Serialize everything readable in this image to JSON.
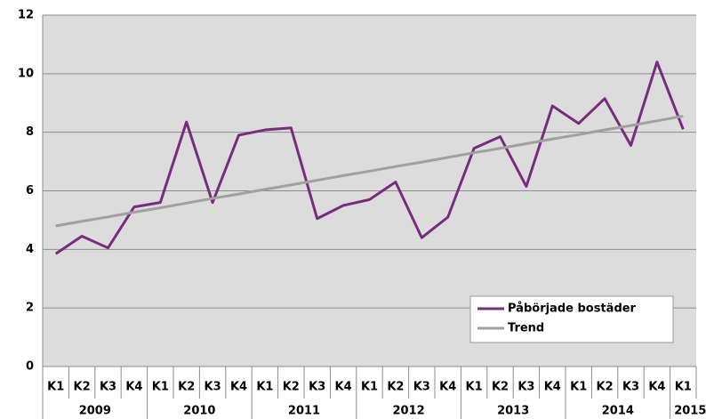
{
  "chart_data": {
    "type": "line",
    "categories": [
      [
        "2009",
        "K1"
      ],
      [
        "2009",
        "K2"
      ],
      [
        "2009",
        "K3"
      ],
      [
        "2009",
        "K4"
      ],
      [
        "2010",
        "K1"
      ],
      [
        "2010",
        "K2"
      ],
      [
        "2010",
        "K3"
      ],
      [
        "2010",
        "K4"
      ],
      [
        "2011",
        "K1"
      ],
      [
        "2011",
        "K2"
      ],
      [
        "2011",
        "K3"
      ],
      [
        "2011",
        "K4"
      ],
      [
        "2012",
        "K1"
      ],
      [
        "2012",
        "K2"
      ],
      [
        "2012",
        "K3"
      ],
      [
        "2012",
        "K4"
      ],
      [
        "2013",
        "K1"
      ],
      [
        "2013",
        "K2"
      ],
      [
        "2013",
        "K3"
      ],
      [
        "2013",
        "K4"
      ],
      [
        "2014",
        "K1"
      ],
      [
        "2014",
        "K2"
      ],
      [
        "2014",
        "K3"
      ],
      [
        "2014",
        "K4"
      ],
      [
        "2015",
        "K1"
      ]
    ],
    "series": [
      {
        "name": "Påbörjade bostäder",
        "color": "#772c7e",
        "values": [
          3.85,
          4.45,
          4.05,
          5.45,
          5.6,
          8.35,
          5.6,
          7.9,
          8.08,
          8.15,
          5.05,
          5.5,
          5.7,
          6.3,
          4.4,
          5.1,
          7.45,
          7.85,
          6.15,
          8.9,
          8.3,
          9.15,
          7.55,
          10.4,
          8.1
        ]
      },
      {
        "name": "Trend",
        "color": "#a0a0a0",
        "values": [
          4.8,
          4.96,
          5.11,
          5.27,
          5.42,
          5.58,
          5.74,
          5.89,
          6.05,
          6.2,
          6.36,
          6.52,
          6.67,
          6.83,
          6.98,
          7.14,
          7.3,
          7.45,
          7.61,
          7.77,
          7.92,
          8.08,
          8.23,
          8.39,
          8.55
        ]
      }
    ],
    "ylim": [
      0,
      12
    ],
    "yticks": [
      0,
      2,
      4,
      6,
      8,
      10,
      12
    ],
    "grid": true,
    "legend": "lower right"
  }
}
